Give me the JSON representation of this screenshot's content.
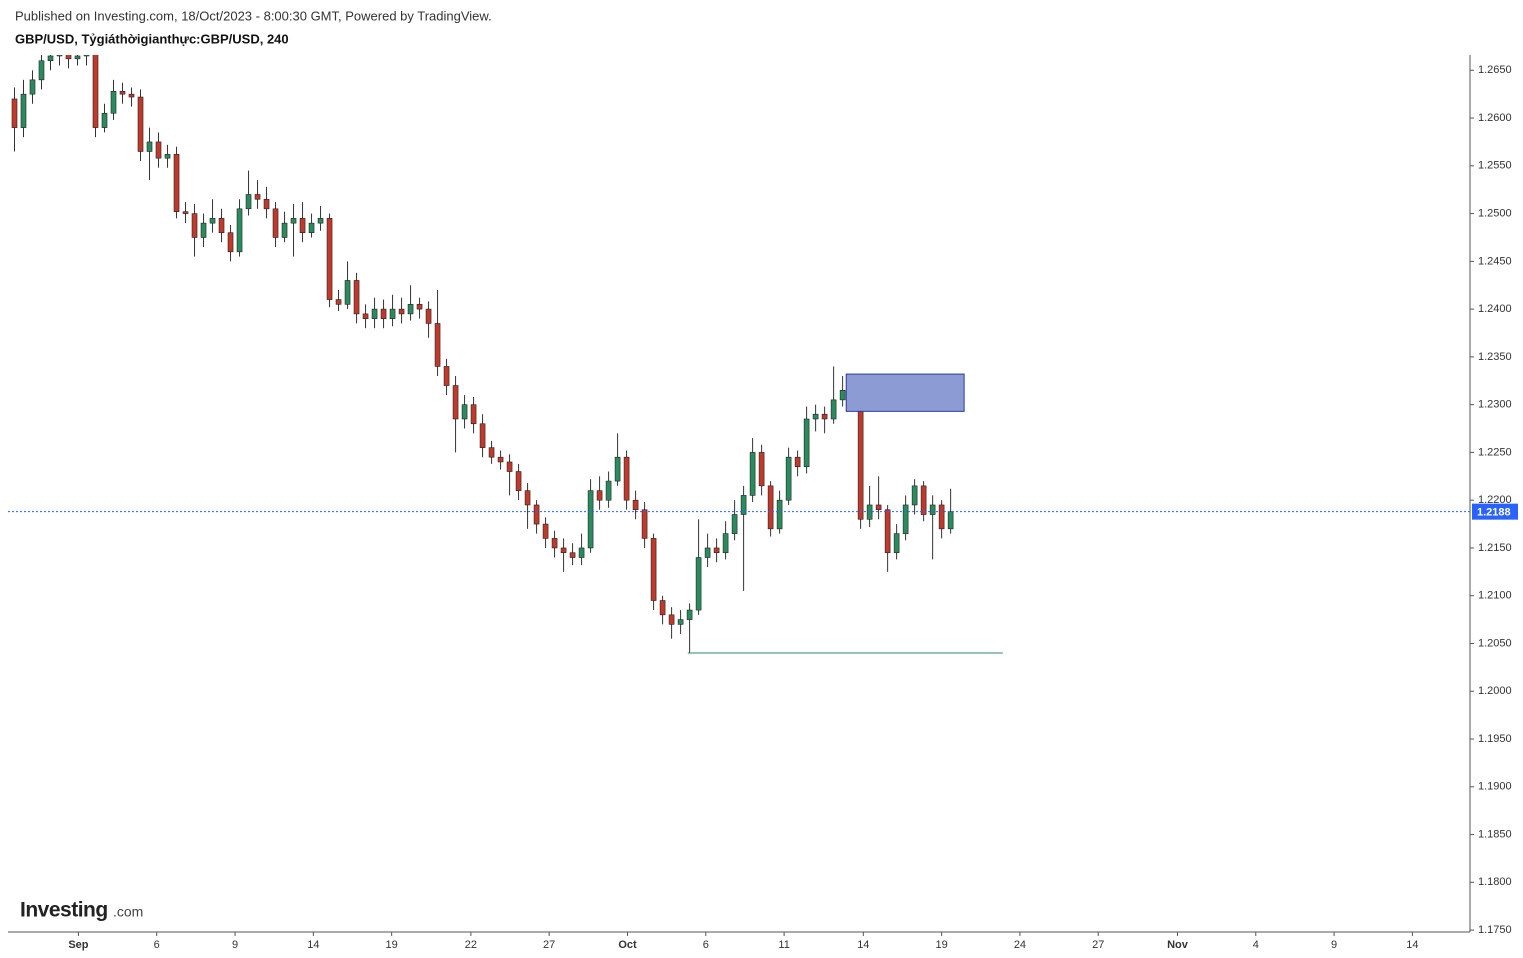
{
  "chart_data": {
    "type": "candlestick",
    "source": "Published on Investing.com, 18/Oct/2023 - 8:00:30 GMT, Powered by TradingView.",
    "title": "GBP/USD, Tỷgiáthờigianthực:GBP/USD, 240",
    "logo": "Investing",
    "logo_suffix": ".com",
    "up_color": "#2a8c5e",
    "down_color": "#c0392b",
    "open": [
      1.262,
      1.259,
      1.2625,
      1.264,
      1.266,
      1.2665,
      1.2668,
      1.2662,
      1.2665,
      1.2668,
      1.259,
      1.2605,
      1.2628,
      1.2625,
      1.2622,
      1.2565,
      1.2575,
      1.2558,
      1.2562,
      1.2502,
      1.25,
      1.2475,
      1.249,
      1.2495,
      1.248,
      1.246,
      1.2505,
      1.252,
      1.2515,
      1.2505,
      1.2475,
      1.249,
      1.2495,
      1.248,
      1.249,
      1.2495,
      1.241,
      1.2405,
      1.243,
      1.2395,
      1.239,
      1.24,
      1.239,
      1.24,
      1.2395,
      1.2405,
      1.24,
      1.2385,
      1.234,
      1.232,
      1.2285,
      1.23,
      1.228,
      1.2255,
      1.2245,
      1.224,
      1.223,
      1.221,
      1.2195,
      1.2175,
      1.216,
      1.215,
      1.2145,
      1.214,
      1.215,
      1.221,
      1.22,
      1.222,
      1.2245,
      1.22,
      1.219,
      1.216,
      1.2095,
      1.208,
      1.207,
      1.2075,
      1.2085,
      1.214,
      1.215,
      1.2145,
      1.2165,
      1.2185,
      1.2205,
      1.225,
      1.2215,
      1.217,
      1.22,
      1.2245,
      1.2235,
      1.2285,
      1.229,
      1.2285,
      1.2305,
      1.2315,
      1.231,
      1.218,
      1.2195,
      1.219,
      1.2145,
      1.2165,
      1.2195,
      1.2215,
      1.2185,
      1.2195,
      1.217
    ],
    "high": [
      1.2632,
      1.264,
      1.265,
      1.2672,
      1.268,
      1.268,
      1.2678,
      1.2676,
      1.2685,
      1.2675,
      1.2615,
      1.264,
      1.2637,
      1.2632,
      1.263,
      1.259,
      1.2585,
      1.2572,
      1.257,
      1.2512,
      1.251,
      1.25,
      1.2515,
      1.2505,
      1.2488,
      1.2515,
      1.2545,
      1.2535,
      1.2528,
      1.2512,
      1.2502,
      1.251,
      1.2512,
      1.25,
      1.2508,
      1.25,
      1.242,
      1.245,
      1.2438,
      1.2405,
      1.2412,
      1.241,
      1.2415,
      1.2412,
      1.2425,
      1.2412,
      1.2408,
      1.242,
      1.2348,
      1.233,
      1.231,
      1.2308,
      1.229,
      1.2262,
      1.2252,
      1.2248,
      1.2238,
      1.2218,
      1.22,
      1.2182,
      1.2168,
      1.216,
      1.2155,
      1.2165,
      1.2222,
      1.2225,
      1.223,
      1.227,
      1.2252,
      1.221,
      1.2198,
      1.2165,
      1.21,
      1.2088,
      1.2085,
      1.2092,
      1.218,
      1.2165,
      1.216,
      1.2178,
      1.22,
      1.2215,
      1.2265,
      1.2258,
      1.222,
      1.221,
      1.2255,
      1.2252,
      1.2298,
      1.23,
      1.2298,
      1.234,
      1.233,
      1.2322,
      1.2315,
      1.2215,
      1.2225,
      1.2195,
      1.2175,
      1.2205,
      1.2222,
      1.222,
      1.2205,
      1.22,
      1.2212
    ],
    "low": [
      1.2565,
      1.258,
      1.2615,
      1.263,
      1.265,
      1.2655,
      1.2652,
      1.2655,
      1.2655,
      1.258,
      1.2585,
      1.2598,
      1.2615,
      1.2612,
      1.2555,
      1.2535,
      1.2548,
      1.2548,
      1.2495,
      1.249,
      1.2455,
      1.2465,
      1.248,
      1.247,
      1.245,
      1.2455,
      1.2498,
      1.2505,
      1.2495,
      1.2465,
      1.247,
      1.2455,
      1.247,
      1.2475,
      1.2482,
      1.2402,
      1.2398,
      1.24,
      1.2385,
      1.238,
      1.238,
      1.238,
      1.2382,
      1.2385,
      1.2388,
      1.239,
      1.237,
      1.233,
      1.231,
      1.225,
      1.2275,
      1.227,
      1.2245,
      1.2238,
      1.2232,
      1.2205,
      1.22,
      1.217,
      1.2165,
      1.215,
      1.214,
      1.2125,
      1.2132,
      1.2132,
      1.2145,
      1.219,
      1.2192,
      1.2215,
      1.219,
      1.218,
      1.215,
      1.2085,
      1.207,
      1.2055,
      1.206,
      1.204,
      1.208,
      1.213,
      1.2135,
      1.2138,
      1.2158,
      1.2105,
      1.2198,
      1.2205,
      1.2162,
      1.2165,
      1.2195,
      1.2225,
      1.2228,
      1.2272,
      1.227,
      1.228,
      1.2298,
      1.2295,
      1.217,
      1.2172,
      1.218,
      1.2125,
      1.2138,
      1.2158,
      1.2185,
      1.2178,
      1.2138,
      1.216,
      1.2165
    ],
    "close": [
      1.259,
      1.2625,
      1.264,
      1.266,
      1.2665,
      1.2668,
      1.2662,
      1.2665,
      1.2668,
      1.259,
      1.2605,
      1.2628,
      1.2625,
      1.2622,
      1.2565,
      1.2575,
      1.2558,
      1.2562,
      1.2502,
      1.25,
      1.2475,
      1.249,
      1.2495,
      1.248,
      1.246,
      1.2505,
      1.252,
      1.2515,
      1.2505,
      1.2475,
      1.249,
      1.2495,
      1.248,
      1.249,
      1.2495,
      1.241,
      1.2405,
      1.243,
      1.2395,
      1.239,
      1.24,
      1.239,
      1.24,
      1.2395,
      1.2405,
      1.24,
      1.2385,
      1.234,
      1.232,
      1.2285,
      1.23,
      1.228,
      1.2255,
      1.2245,
      1.224,
      1.223,
      1.221,
      1.2195,
      1.2175,
      1.216,
      1.215,
      1.2145,
      1.214,
      1.215,
      1.221,
      1.22,
      1.222,
      1.2245,
      1.22,
      1.219,
      1.216,
      1.2095,
      1.208,
      1.207,
      1.2075,
      1.2085,
      1.214,
      1.215,
      1.2145,
      1.2165,
      1.2185,
      1.2205,
      1.225,
      1.2215,
      1.217,
      1.22,
      1.2245,
      1.2235,
      1.2285,
      1.229,
      1.2285,
      1.2305,
      1.2315,
      1.231,
      1.218,
      1.2195,
      1.219,
      1.2145,
      1.2165,
      1.2195,
      1.2215,
      1.2185,
      1.2195,
      1.217,
      1.2188
    ],
    "xlim": [
      -0.5,
      161.7
    ],
    "xticks": [
      {
        "value": 7.1,
        "label": "Sep"
      },
      {
        "value": 15.8,
        "label": "6"
      },
      {
        "value": 24.5,
        "label": "9"
      },
      {
        "value": 33.2,
        "label": "14"
      },
      {
        "value": 41.9,
        "label": "19"
      },
      {
        "value": 50.7,
        "label": "22"
      },
      {
        "value": 59.4,
        "label": "27"
      },
      {
        "value": 68.1,
        "label": "Oct"
      },
      {
        "value": 76.8,
        "label": "6"
      },
      {
        "value": 85.5,
        "label": "11"
      },
      {
        "value": 94.3,
        "label": "14"
      },
      {
        "value": 103,
        "label": "19"
      },
      {
        "value": 111.7,
        "label": "24"
      },
      {
        "value": 120.4,
        "label": "27"
      },
      {
        "value": 129.2,
        "label": "Nov"
      },
      {
        "value": 137.9,
        "label": "4"
      },
      {
        "value": 146.6,
        "label": "9"
      },
      {
        "value": 155.3,
        "label": "14"
      }
    ],
    "ylim": [
      1.1748,
      1.2666
    ],
    "yticks": [
      {
        "value": 1.175,
        "label": "1.1750"
      },
      {
        "value": 1.18,
        "label": "1.1800"
      },
      {
        "value": 1.185,
        "label": "1.1850"
      },
      {
        "value": 1.19,
        "label": "1.1900"
      },
      {
        "value": 1.195,
        "label": "1.1950"
      },
      {
        "value": 1.2,
        "label": "1.2000"
      },
      {
        "value": 1.205,
        "label": "1.2050"
      },
      {
        "value": 1.21,
        "label": "1.2100"
      },
      {
        "value": 1.215,
        "label": "1.2150"
      },
      {
        "value": 1.22,
        "label": "1.2200"
      },
      {
        "value": 1.225,
        "label": "1.2250"
      },
      {
        "value": 1.23,
        "label": "1.2300"
      },
      {
        "value": 1.235,
        "label": "1.2350"
      },
      {
        "value": 1.24,
        "label": "1.2400"
      },
      {
        "value": 1.245,
        "label": "1.2450"
      },
      {
        "value": 1.25,
        "label": "1.2500"
      },
      {
        "value": 1.255,
        "label": "1.2550"
      },
      {
        "value": 1.26,
        "label": "1.2600"
      },
      {
        "value": 1.265,
        "label": "1.2650"
      }
    ],
    "zone": {
      "x": [
        92.4,
        105.5
      ],
      "y": [
        1.2293,
        1.2332
      ],
      "color": "#8c9bd4"
    },
    "support": {
      "x": [
        74.8,
        109.8
      ],
      "y": 1.204,
      "color": "#2e8b6f"
    },
    "last_price": {
      "value": 1.2188,
      "color": "#2962ff"
    }
  }
}
